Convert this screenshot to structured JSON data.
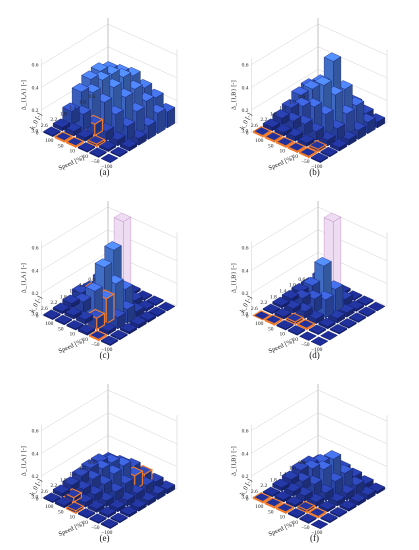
{
  "chart_data": [
    {
      "panel": "a",
      "caption": "(a)",
      "type": "bar3d",
      "zlabel": "Δ_{I,A} [-]",
      "xlabel": "k_0 [-]",
      "ylabel": "Speed [%]",
      "zticks": [
        "0",
        "0.2",
        "0.4",
        "0.6"
      ],
      "xticks": [
        "0.6",
        "1.0",
        "1.4",
        "1.8",
        "2.2",
        "2.6",
        "3.0"
      ],
      "yticks": [
        "100",
        "50",
        "10",
        "−10",
        "−50",
        "−100"
      ],
      "zlim": [
        0,
        0.6
      ],
      "k0": [
        0.6,
        1.0,
        1.4,
        1.8,
        2.2,
        2.6,
        3.0
      ],
      "speed": [
        100,
        50,
        10,
        -10,
        -50,
        -100
      ],
      "values": [
        [
          0.28,
          0.3,
          0.32,
          0.26,
          0.22,
          0.14
        ],
        [
          0.32,
          0.34,
          0.36,
          0.3,
          0.24,
          0.18
        ],
        [
          0.3,
          0.34,
          0.32,
          0.28,
          0.2,
          0.12
        ],
        [
          0.24,
          0.28,
          0.24,
          0.18,
          0.12,
          0.06
        ],
        [
          0.12,
          0.14,
          0.1,
          0.08,
          0.05,
          0.03
        ],
        [
          0.03,
          0.04,
          0.03,
          0.02,
          0.02,
          0.01
        ],
        [
          0.01,
          0.01,
          0.01,
          0.01,
          0.01,
          0.0
        ]
      ],
      "highlighted": [
        [
          4,
          2
        ],
        [
          6,
          1
        ],
        [
          6,
          2
        ],
        [
          5,
          3
        ]
      ],
      "outlined_tall": []
    },
    {
      "panel": "b",
      "caption": "(b)",
      "type": "bar3d",
      "zlabel": "Δ_{I,B} [-]",
      "xlabel": "k_0 [-]",
      "ylabel": "Speed [%]",
      "zticks": [
        "0",
        "0.2",
        "0.4",
        "0.6"
      ],
      "xticks": [
        "0.6",
        "1.0",
        "1.4",
        "1.8",
        "2.2",
        "2.6",
        "3.0"
      ],
      "yticks": [
        "100",
        "50",
        "10",
        "−10",
        "−50",
        "−100"
      ],
      "zlim": [
        0,
        0.6
      ],
      "k0": [
        0.6,
        1.0,
        1.4,
        1.8,
        2.2,
        2.6,
        3.0
      ],
      "speed": [
        100,
        50,
        10,
        -10,
        -50,
        -100
      ],
      "values": [
        [
          0.1,
          0.12,
          0.14,
          0.12,
          0.08,
          0.05
        ],
        [
          0.18,
          0.26,
          0.5,
          0.3,
          0.2,
          0.1
        ],
        [
          0.16,
          0.26,
          0.34,
          0.3,
          0.18,
          0.08
        ],
        [
          0.1,
          0.16,
          0.2,
          0.18,
          0.1,
          0.05
        ],
        [
          0.06,
          0.08,
          0.1,
          0.08,
          0.05,
          0.03
        ],
        [
          0.03,
          0.03,
          0.04,
          0.03,
          0.02,
          0.01
        ],
        [
          0.01,
          0.01,
          0.01,
          0.01,
          0.01,
          0.01
        ]
      ],
      "highlighted": [
        [
          6,
          0
        ],
        [
          6,
          1
        ],
        [
          6,
          2
        ],
        [
          6,
          3
        ],
        [
          6,
          4
        ],
        [
          5,
          4
        ]
      ],
      "outlined_tall": []
    },
    {
      "panel": "c",
      "caption": "(c)",
      "type": "bar3d",
      "zlabel": "Δ_{I,A} [-]",
      "xlabel": "k_0 [-]",
      "ylabel": "Speed [%]",
      "zticks": [
        "0",
        "0.2",
        "0.4",
        "0.6"
      ],
      "xticks": [
        "0.6",
        "1.0",
        "1.4",
        "1.8",
        "2.2",
        "2.6",
        "3.0"
      ],
      "yticks": [
        "100",
        "50",
        "10",
        "−10",
        "−50",
        "−100"
      ],
      "zlim": [
        0,
        0.6
      ],
      "k0": [
        0.6,
        1.0,
        1.4,
        1.8,
        2.2,
        2.6,
        3.0
      ],
      "speed": [
        100,
        50,
        10,
        -10,
        -50,
        -100
      ],
      "values": [
        [
          0.01,
          0.02,
          0.02,
          0.01,
          0.01,
          0.0
        ],
        [
          0.04,
          0.12,
          0.7,
          0.05,
          0.02,
          0.01
        ],
        [
          0.06,
          0.2,
          0.5,
          0.2,
          0.05,
          0.02
        ],
        [
          0.08,
          0.14,
          0.4,
          0.3,
          0.12,
          0.03
        ],
        [
          0.04,
          0.1,
          0.24,
          0.22,
          0.1,
          0.02
        ],
        [
          0.02,
          0.03,
          0.04,
          0.1,
          0.03,
          0.01
        ],
        [
          0.01,
          0.01,
          0.01,
          0.02,
          0.01,
          0.01
        ]
      ],
      "highlighted": [
        [
          3,
          1
        ],
        [
          4,
          3
        ],
        [
          5,
          3
        ],
        [
          6,
          4
        ]
      ],
      "outlined_tall": [
        [
          1,
          2
        ]
      ]
    },
    {
      "panel": "d",
      "caption": "(d)",
      "type": "bar3d",
      "zlabel": "Δ_{I,B} [-]",
      "xlabel": "k_0 [-]",
      "ylabel": "Speed [%]",
      "zticks": [
        "0",
        "0.2",
        "0.4",
        "0.6"
      ],
      "xticks": [
        "0.6",
        "1.0",
        "1.4",
        "1.8",
        "2.2",
        "2.6",
        "3.0"
      ],
      "yticks": [
        "100",
        "50",
        "10",
        "−10",
        "−50",
        "−100"
      ],
      "zlim": [
        0,
        0.6
      ],
      "k0": [
        0.6,
        1.0,
        1.4,
        1.8,
        2.2,
        2.6,
        3.0
      ],
      "speed": [
        100,
        50,
        10,
        -10,
        -50,
        -100
      ],
      "values": [
        [
          0.01,
          0.02,
          0.02,
          0.01,
          0.01,
          0.0
        ],
        [
          0.04,
          0.16,
          0.7,
          0.06,
          0.02,
          0.01
        ],
        [
          0.04,
          0.14,
          0.36,
          0.2,
          0.04,
          0.01
        ],
        [
          0.03,
          0.08,
          0.12,
          0.16,
          0.04,
          0.01
        ],
        [
          0.02,
          0.04,
          0.06,
          0.04,
          0.02,
          0.01
        ],
        [
          0.01,
          0.02,
          0.02,
          0.01,
          0.01,
          0.0
        ],
        [
          0.0,
          0.01,
          0.01,
          0.01,
          0.0,
          0.0
        ]
      ],
      "highlighted": [
        [
          5,
          2
        ],
        [
          5,
          3
        ],
        [
          6,
          0
        ],
        [
          6,
          1
        ]
      ],
      "outlined_tall": [
        [
          1,
          2
        ]
      ]
    },
    {
      "panel": "e",
      "caption": "(e)",
      "type": "bar3d",
      "zlabel": "Δ_{I,A} [-]",
      "xlabel": "k_0 [-]",
      "ylabel": "Speed [%]",
      "zticks": [
        "0",
        "0.2",
        "0.4",
        "0.6"
      ],
      "xticks": [
        "0.6",
        "1.0",
        "1.4",
        "1.8",
        "2.2",
        "2.6",
        "3.0"
      ],
      "yticks": [
        "100",
        "50",
        "10",
        "−10",
        "−50",
        "−100"
      ],
      "zlim": [
        0,
        0.6
      ],
      "k0": [
        0.6,
        1.0,
        1.4,
        1.8,
        2.2,
        2.6,
        3.0
      ],
      "speed": [
        100,
        50,
        10,
        -10,
        -50,
        -100
      ],
      "values": [
        [
          0.06,
          0.08,
          0.1,
          0.08,
          0.06,
          0.04
        ],
        [
          0.1,
          0.14,
          0.16,
          0.12,
          0.08,
          0.05
        ],
        [
          0.1,
          0.14,
          0.14,
          0.1,
          0.06,
          0.04
        ],
        [
          0.08,
          0.1,
          0.1,
          0.08,
          0.05,
          0.03
        ],
        [
          0.05,
          0.06,
          0.06,
          0.05,
          0.03,
          0.02
        ],
        [
          0.03,
          0.04,
          0.04,
          0.03,
          0.02,
          0.01
        ],
        [
          0.01,
          0.02,
          0.02,
          0.01,
          0.01,
          0.01
        ]
      ],
      "highlighted": [
        [
          0,
          3
        ],
        [
          1,
          3
        ],
        [
          5,
          1
        ],
        [
          6,
          2
        ]
      ],
      "outlined_tall": []
    },
    {
      "panel": "f",
      "caption": "(f)",
      "type": "bar3d",
      "zlabel": "Δ_{I,B} [-]",
      "xlabel": "k_0 [-]",
      "ylabel": "Speed [%]",
      "zticks": [
        "0",
        "0.2",
        "0.4",
        "0.6"
      ],
      "xticks": [
        "0.6",
        "1.0",
        "1.4",
        "1.8",
        "2.2",
        "2.6",
        "3.0"
      ],
      "yticks": [
        "100",
        "50",
        "10",
        "−10",
        "−50",
        "−100"
      ],
      "zlim": [
        0,
        0.6
      ],
      "k0": [
        0.6,
        1.0,
        1.4,
        1.8,
        2.2,
        2.6,
        3.0
      ],
      "speed": [
        100,
        50,
        10,
        -10,
        -50,
        -100
      ],
      "values": [
        [
          0.04,
          0.06,
          0.08,
          0.06,
          0.04,
          0.02
        ],
        [
          0.08,
          0.14,
          0.22,
          0.14,
          0.08,
          0.04
        ],
        [
          0.08,
          0.14,
          0.18,
          0.12,
          0.06,
          0.03
        ],
        [
          0.05,
          0.08,
          0.1,
          0.07,
          0.04,
          0.02
        ],
        [
          0.03,
          0.04,
          0.05,
          0.04,
          0.02,
          0.01
        ],
        [
          0.01,
          0.02,
          0.02,
          0.02,
          0.01,
          0.01
        ],
        [
          0.01,
          0.01,
          0.01,
          0.01,
          0.01,
          0.0
        ]
      ],
      "highlighted": [
        [
          5,
          3
        ],
        [
          5,
          4
        ],
        [
          6,
          0
        ],
        [
          6,
          1
        ],
        [
          6,
          2
        ]
      ],
      "outlined_tall": []
    }
  ],
  "colors": {
    "bar_high": "#4f86f0",
    "bar_mid": "#3c62d8",
    "bar_low": "#1c2a8e",
    "floor_cell": "#12226e",
    "highlight": "#f07a2a",
    "outlined_tall_fill": "#eedcf2",
    "outlined_tall_edge": "#b478b8",
    "gridline": "#cccccc"
  }
}
